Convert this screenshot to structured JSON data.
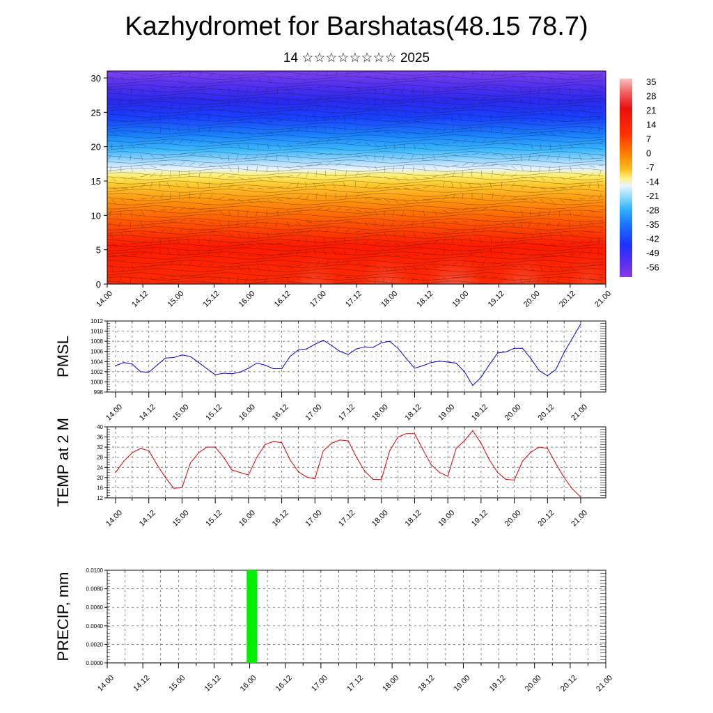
{
  "header": {
    "title": "Kazhydromet for Barshatas(48.15 78.7)",
    "subtitle": "14 ☆☆☆☆☆☆☆☆ 2025"
  },
  "x_axis_labels": [
    "14.00",
    "14.12",
    "15.00",
    "15.12",
    "16.00",
    "16.12",
    "17.00",
    "17.12",
    "18.00",
    "18.12",
    "19.00",
    "19.12",
    "20.00",
    "20.12",
    "21.00"
  ],
  "colors": {
    "pmsl_line": "#0000cc",
    "temp_line": "#dd0000",
    "precip_bar": "#00ee00",
    "colorbar": [
      "#8a2be2",
      "#5a2ff0",
      "#2a30ff",
      "#1a60ff",
      "#1aa0ff",
      "#30c8ff",
      "#9ee0ff",
      "#e8f0f0",
      "#ffee66",
      "#ffcc22",
      "#ff9900",
      "#ff6a00",
      "#ff3300",
      "#ee1100",
      "#dd1100",
      "#f06050",
      "#f8b0b0"
    ]
  },
  "chart_data": [
    {
      "type": "heatmap",
      "title": "",
      "ylabel": "",
      "ylim": [
        0,
        30
      ],
      "y_ticks": [
        0,
        5,
        10,
        15,
        20,
        25,
        30
      ],
      "x_range_hours": [
        0,
        168
      ],
      "colorbar_labels": [
        "35",
        "28",
        "21",
        "14",
        "7",
        "0",
        "-7",
        "-14",
        "-21",
        "-28",
        "-35",
        "-42",
        "-49",
        "-56"
      ]
    },
    {
      "type": "line",
      "ylabel": "PMSL",
      "ylim": [
        998,
        1012
      ],
      "y_ticks": [
        "998",
        "1000",
        "1002",
        "1004",
        "1006",
        "1008",
        "1010",
        "1012"
      ],
      "x_hours": [
        0,
        3,
        6,
        9,
        12,
        15,
        18,
        21,
        24,
        27,
        30,
        33,
        36,
        39,
        42,
        45,
        48,
        51,
        54,
        57,
        60,
        63,
        66,
        69,
        72,
        75,
        78,
        81,
        84,
        87,
        90,
        93,
        96,
        99,
        102,
        105,
        108,
        111,
        114,
        117,
        120,
        123,
        126,
        129,
        132,
        135,
        138,
        141,
        144,
        147,
        150,
        153,
        156,
        159,
        162,
        165,
        168
      ],
      "series": [
        {
          "values": [
            1003.2,
            1003.8,
            1003.5,
            1002.0,
            1001.9,
            1003.3,
            1004.7,
            1004.8,
            1005.3,
            1005.0,
            1003.8,
            1002.6,
            1001.4,
            1001.7,
            1001.6,
            1001.9,
            1002.7,
            1003.7,
            1003.3,
            1002.6,
            1002.6,
            1005.0,
            1006.3,
            1006.5,
            1007.4,
            1008.2,
            1007.2,
            1006.0,
            1005.4,
            1006.5,
            1006.9,
            1006.8,
            1007.7,
            1008.0,
            1006.6,
            1004.6,
            1002.7,
            1003.2,
            1003.8,
            1004.1,
            1003.9,
            1003.7,
            1002.0,
            999.3,
            1000.9,
            1003.4,
            1005.7,
            1005.9,
            1006.6,
            1006.6,
            1004.6,
            1002.2,
            1001.2,
            1002.4,
            1005.8,
            1008.6,
            1011.4
          ]
        }
      ]
    },
    {
      "type": "line",
      "ylabel": "TEMP at 2 M",
      "ylim": [
        12,
        40
      ],
      "y_ticks": [
        "12",
        "16",
        "20",
        "24",
        "28",
        "32",
        "36",
        "40"
      ],
      "x_hours": [
        0,
        3,
        6,
        9,
        12,
        15,
        18,
        21,
        24,
        27,
        30,
        33,
        36,
        39,
        42,
        45,
        48,
        51,
        54,
        57,
        60,
        63,
        66,
        69,
        72,
        75,
        78,
        81,
        84,
        87,
        90,
        93,
        96,
        99,
        102,
        105,
        108,
        111,
        114,
        117,
        120,
        123,
        126,
        129,
        132,
        135,
        138,
        141,
        144,
        147,
        150,
        153,
        156,
        159,
        162,
        165,
        168
      ],
      "series": [
        {
          "values": [
            22.0,
            26.5,
            29.8,
            31.5,
            30.6,
            25.0,
            20.0,
            15.8,
            16.0,
            25.7,
            29.8,
            32.0,
            32.0,
            28.0,
            23.0,
            22.0,
            21.0,
            28.0,
            33.0,
            34.2,
            33.8,
            27.0,
            22.3,
            20.2,
            19.5,
            30.5,
            33.5,
            34.8,
            34.5,
            28.0,
            22.5,
            19.3,
            19.2,
            30.5,
            36.0,
            37.3,
            37.3,
            31.0,
            25.0,
            22.0,
            20.5,
            31.5,
            34.5,
            38.5,
            33.5,
            27.0,
            22.0,
            19.3,
            19.0,
            26.5,
            30.0,
            32.0,
            31.5,
            25.5,
            20.0,
            15.5,
            12.3
          ]
        }
      ]
    },
    {
      "type": "bar",
      "ylabel": "PRECIP, mm",
      "ylim": [
        0,
        0.01
      ],
      "y_ticks": [
        "0.0000",
        "0.0020",
        "0.0040",
        "0.0060",
        "0.0080",
        "0.0100"
      ],
      "bars": [
        {
          "x_start_hours": 47.0,
          "x_end_hours": 50.5,
          "value": 0.01
        }
      ]
    }
  ]
}
